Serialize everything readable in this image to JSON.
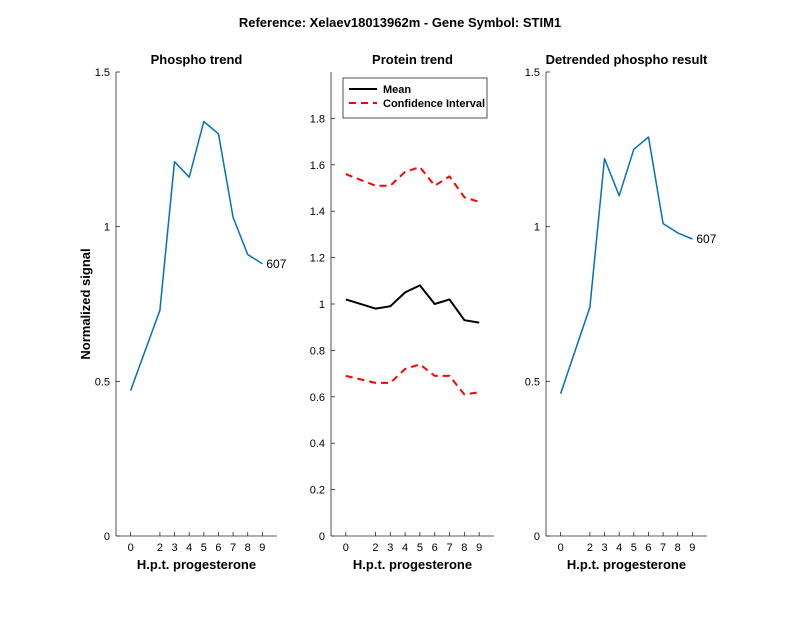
{
  "figure": {
    "suptitle": "Reference:  Xelaev18013962m - Gene Symbol:  STIM1"
  },
  "chart_data": [
    {
      "type": "line",
      "title": "Phospho trend",
      "xlabel": "H.p.t. progesterone",
      "ylabel": "Normalized signal",
      "x": [
        0,
        2,
        3,
        4,
        5,
        6,
        7,
        8,
        9
      ],
      "ylim": [
        0,
        1.5
      ],
      "yticks": [
        "0",
        "0.5",
        "1",
        "1.5"
      ],
      "series": [
        {
          "values": [
            0.47,
            0.73,
            1.21,
            1.16,
            1.34,
            1.3,
            1.03,
            0.91,
            0.88
          ],
          "color": "#0072BD"
        }
      ],
      "annotation": "607"
    },
    {
      "type": "line",
      "title": "Protein trend",
      "xlabel": "H.p.t. progesterone",
      "x": [
        0,
        2,
        3,
        4,
        5,
        6,
        7,
        8,
        9
      ],
      "ylim": [
        0,
        2.0
      ],
      "yticks": [
        "0",
        "0.2",
        "0.4",
        "0.6",
        "0.8",
        "1",
        "1.2",
        "1.4",
        "1.6",
        "1.8"
      ],
      "legend_position": "top-left",
      "series": [
        {
          "name": "Mean",
          "values": [
            1.02,
            0.98,
            0.99,
            1.05,
            1.08,
            1.0,
            1.02,
            0.93,
            0.92
          ],
          "color": "#000000",
          "style": "solid"
        },
        {
          "name": "Confidence Interval",
          "values": [
            1.56,
            1.51,
            1.51,
            1.57,
            1.59,
            1.51,
            1.55,
            1.46,
            1.44
          ],
          "color": "#FF0000",
          "style": "dashed"
        },
        {
          "values": [
            0.69,
            0.66,
            0.66,
            0.72,
            0.74,
            0.69,
            0.69,
            0.61,
            0.62
          ],
          "color": "#FF0000",
          "style": "dashed"
        }
      ]
    },
    {
      "type": "line",
      "title": "Detrended phospho result",
      "xlabel": "H.p.t. progesterone",
      "x": [
        0,
        2,
        3,
        4,
        5,
        6,
        7,
        8,
        9
      ],
      "ylim": [
        0,
        1.5
      ],
      "yticks": [
        "0",
        "0.5",
        "1",
        "1.5"
      ],
      "series": [
        {
          "values": [
            0.46,
            0.74,
            1.22,
            1.1,
            1.25,
            1.29,
            1.01,
            0.98,
            0.96
          ],
          "color": "#0072BD"
        }
      ],
      "annotation": "607"
    }
  ]
}
